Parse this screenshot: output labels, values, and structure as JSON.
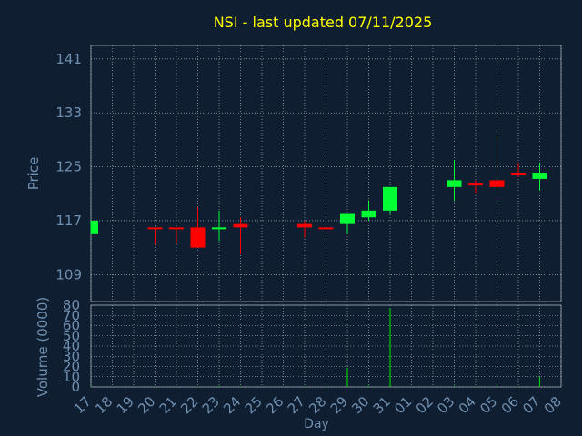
{
  "chart_data": [
    {
      "type": "candlestick",
      "title": "NSI - last updated 07/11/2025",
      "ylabel": "Price",
      "ylim": [
        105,
        143
      ],
      "y_ticks": [
        109,
        117,
        125,
        133,
        141
      ],
      "grid": true,
      "categories": [
        "17",
        "18",
        "19",
        "20",
        "21",
        "22",
        "23",
        "24",
        "25",
        "26",
        "27",
        "28",
        "29",
        "30",
        "31",
        "01",
        "02",
        "03",
        "04",
        "05",
        "06",
        "07",
        "08"
      ],
      "candles": [
        {
          "x": "17",
          "open": 115.0,
          "close": 117.0,
          "high": 117.0,
          "low": 115.0
        },
        {
          "x": "20",
          "open": 116.0,
          "close": 115.8,
          "high": 116.0,
          "low": 113.5
        },
        {
          "x": "21",
          "open": 116.0,
          "close": 115.8,
          "high": 116.0,
          "low": 113.5
        },
        {
          "x": "22",
          "open": 116.0,
          "close": 113.0,
          "high": 119.0,
          "low": 113.0
        },
        {
          "x": "23",
          "open": 115.8,
          "close": 116.0,
          "high": 118.5,
          "low": 114.0
        },
        {
          "x": "24",
          "open": 116.5,
          "close": 116.0,
          "high": 117.5,
          "low": 112.0
        },
        {
          "x": "27",
          "open": 116.5,
          "close": 116.0,
          "high": 117.0,
          "low": 114.5
        },
        {
          "x": "28",
          "open": 116.0,
          "close": 115.8,
          "high": 116.0,
          "low": 115.8
        },
        {
          "x": "29",
          "open": 116.5,
          "close": 118.0,
          "high": 118.0,
          "low": 115.0
        },
        {
          "x": "30",
          "open": 117.5,
          "close": 118.5,
          "high": 120.0,
          "low": 117.0
        },
        {
          "x": "31",
          "open": 118.5,
          "close": 122.0,
          "high": 122.0,
          "low": 118.0
        },
        {
          "x": "03",
          "open": 122.0,
          "close": 123.0,
          "high": 126.0,
          "low": 120.0
        },
        {
          "x": "04",
          "open": 122.5,
          "close": 122.3,
          "high": 123.0,
          "low": 121.0
        },
        {
          "x": "05",
          "open": 123.0,
          "close": 122.0,
          "high": 129.5,
          "low": 120.0
        },
        {
          "x": "06",
          "open": 124.0,
          "close": 123.8,
          "high": 125.5,
          "low": 123.5
        },
        {
          "x": "07",
          "open": 123.2,
          "close": 124.0,
          "high": 125.5,
          "low": 121.5
        }
      ],
      "colors": {
        "up": "#00ff33",
        "down": "#ff0000"
      }
    },
    {
      "type": "bar",
      "ylabel": "Volume (0000)",
      "xlabel": "Day",
      "ylim": [
        0,
        80
      ],
      "y_ticks": [
        0,
        10,
        20,
        30,
        40,
        50,
        60,
        70,
        80
      ],
      "grid": true,
      "categories": [
        "17",
        "18",
        "19",
        "20",
        "21",
        "22",
        "23",
        "24",
        "25",
        "26",
        "27",
        "28",
        "29",
        "30",
        "31",
        "01",
        "02",
        "03",
        "04",
        "05",
        "06",
        "07",
        "08"
      ],
      "values": {
        "17": 0.5,
        "20": 0.5,
        "21": 0.5,
        "22": 0.5,
        "23": 1,
        "24": 0.5,
        "27": 0.5,
        "28": 0.5,
        "29": 19,
        "30": 1,
        "31": 77,
        "03": 1,
        "04": 0.5,
        "05": 1,
        "06": 0.5,
        "07": 10
      },
      "bar_color": "#00cc00"
    }
  ]
}
